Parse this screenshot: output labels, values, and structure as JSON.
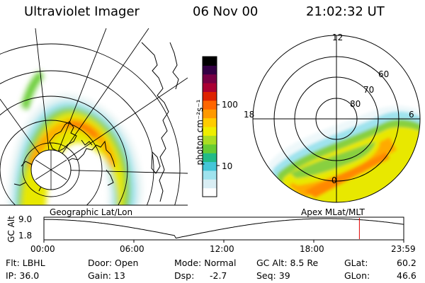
{
  "header": {
    "title": "Ultraviolet Imager",
    "date": "06 Nov 00",
    "time": "21:02:32 UT"
  },
  "colorbar": {
    "unit": "photon cm⁻²s⁻¹",
    "ticks": [
      {
        "label": "100",
        "value": 100
      },
      {
        "label": "10",
        "value": 10
      }
    ],
    "colors": [
      "#ffffff",
      "#d9eef4",
      "#9fe3ee",
      "#44c6d8",
      "#22bb88",
      "#66cc33",
      "#aadd22",
      "#eeee00",
      "#ffcc00",
      "#ff9900",
      "#ff6600",
      "#dd2200",
      "#aa0033",
      "#770044",
      "#330044",
      "#000000"
    ]
  },
  "left_panel": {
    "caption": "Geographic Lat/Lon"
  },
  "right_panel": {
    "caption": "Apex MLat/MLT",
    "mlt_labels": [
      "12",
      "18",
      "6",
      "0"
    ],
    "lat_labels": [
      "60",
      "70",
      "80"
    ]
  },
  "timeline": {
    "ylabel": "GC Alt",
    "y_ticks": [
      "9.0",
      "1.8"
    ],
    "x_ticks": [
      "00:00",
      "06:00",
      "12:00",
      "18:00",
      "23:59"
    ],
    "marker_time": "21:02:32"
  },
  "status": {
    "flt": "Flt: LBHL",
    "ip": "IP: 36.0",
    "door": "Door: Open",
    "gain": "Gain: 13",
    "mode": "Mode: Normal",
    "dsp_label": "Dsp:",
    "dsp_value": "-2.7",
    "gc_alt": "GC Alt: 8.5 Re",
    "seq": "Seq: 39",
    "glat_label": "GLat:",
    "glat_value": "60.2",
    "glon_label": "GLon:",
    "glon_value": "46.6"
  }
}
